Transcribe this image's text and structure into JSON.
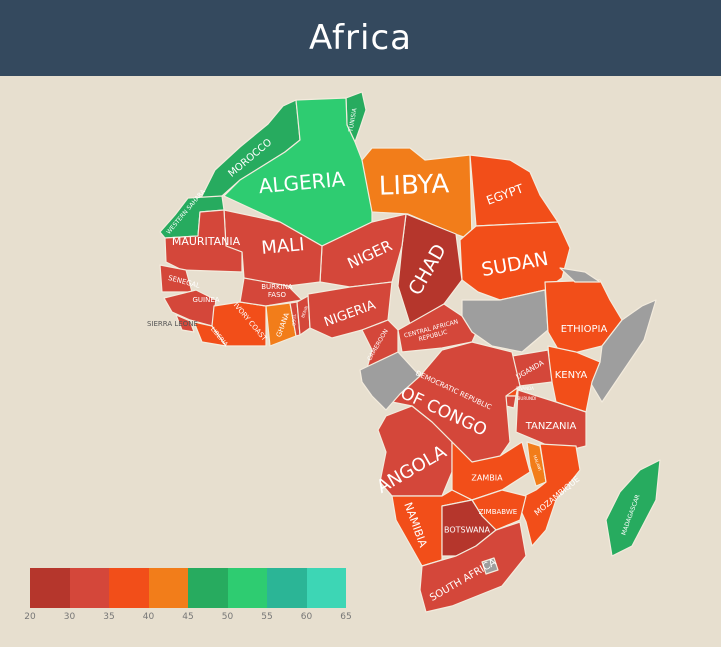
{
  "title": "Africa",
  "legend": {
    "ticks": [
      "20",
      "30",
      "35",
      "40",
      "45",
      "50",
      "55",
      "60",
      "65"
    ],
    "colors": [
      "#b5362c",
      "#d4473a",
      "#f24e19",
      "#f27d1a",
      "#27ab5f",
      "#2ecc71",
      "#2bb596",
      "#3dd6b5"
    ]
  },
  "no_data_color": "#9e9e9e",
  "countries": [
    {
      "name": "MOROCCO",
      "color": "#27ab5f"
    },
    {
      "name": "WESTERN SAHARA",
      "color": "#27ab5f"
    },
    {
      "name": "TUNISIA",
      "color": "#27ab5f"
    },
    {
      "name": "ALGERIA",
      "color": "#2ecc71"
    },
    {
      "name": "LIBYA",
      "color": "#f27d1a"
    },
    {
      "name": "EGYPT",
      "color": "#f24e19"
    },
    {
      "name": "SUDAN",
      "color": "#f24e19"
    },
    {
      "name": "CHAD",
      "color": "#b5362c"
    },
    {
      "name": "NIGER",
      "color": "#d4473a"
    },
    {
      "name": "MALI",
      "color": "#d4473a"
    },
    {
      "name": "MAURITANIA",
      "color": "#d4473a"
    },
    {
      "name": "SENEGAL",
      "color": "#d4473a"
    },
    {
      "name": "GUINEA",
      "color": "#d4473a"
    },
    {
      "name": "SIERRA LEONE",
      "color": "#d4473a"
    },
    {
      "name": "LIBERIA",
      "color": "#f24e19"
    },
    {
      "name": "IVORY COAST",
      "color": "#f24e19"
    },
    {
      "name": "BURKINA FASO",
      "color": "#d4473a"
    },
    {
      "name": "GHANA",
      "color": "#f27d1a"
    },
    {
      "name": "TOGO",
      "color": "#d4473a"
    },
    {
      "name": "BENIN",
      "color": "#d4473a"
    },
    {
      "name": "NIGERIA",
      "color": "#d4473a"
    },
    {
      "name": "CAMEROON",
      "color": "#d4473a"
    },
    {
      "name": "CENTRAL AFRICAN REPUBLIC",
      "color": "#d4473a"
    },
    {
      "name": "ETHIOPIA",
      "color": "#f24e19"
    },
    {
      "name": "KENYA",
      "color": "#f24e19"
    },
    {
      "name": "UGANDA",
      "color": "#d4473a"
    },
    {
      "name": "RWANDA",
      "color": "#f24e19"
    },
    {
      "name": "BURUNDI",
      "color": "#d4473a"
    },
    {
      "name": "DEMOCRATIC REPUBLIC OF CONGO",
      "color": "#d4473a"
    },
    {
      "name": "TANZANIA",
      "color": "#d4473a"
    },
    {
      "name": "ANGOLA",
      "color": "#d4473a"
    },
    {
      "name": "ZAMBIA",
      "color": "#f24e19"
    },
    {
      "name": "MALAWI",
      "color": "#f27d1a"
    },
    {
      "name": "MOZAMBIQUE",
      "color": "#f24e19"
    },
    {
      "name": "ZIMBABWE",
      "color": "#f24e19"
    },
    {
      "name": "NAMIBIA",
      "color": "#f24e19"
    },
    {
      "name": "BOTSWANA",
      "color": "#b5362c"
    },
    {
      "name": "SOUTH AFRICA",
      "color": "#d4473a"
    },
    {
      "name": "MADAGASCAR",
      "color": "#27ab5f"
    }
  ]
}
